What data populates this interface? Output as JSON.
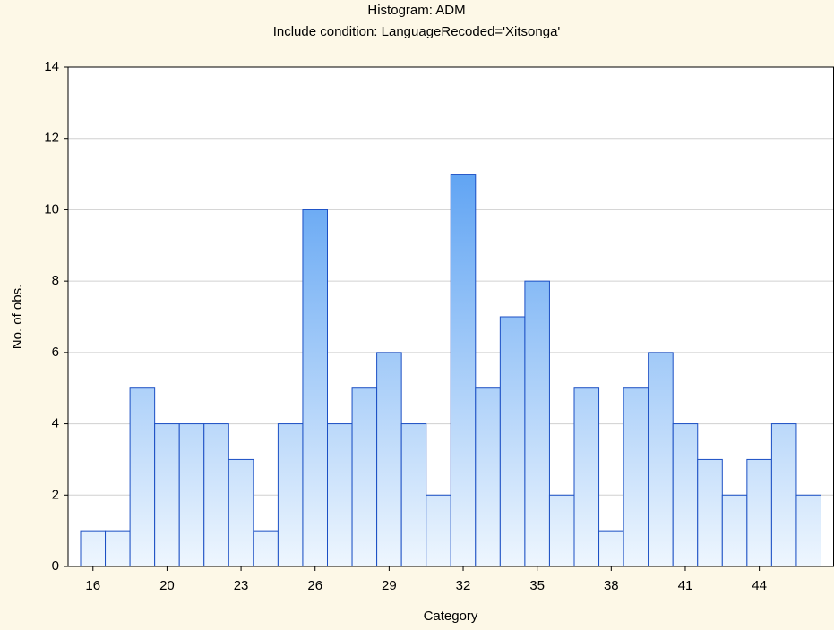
{
  "chart_data": {
    "type": "bar",
    "title": "Histogram: ADM",
    "subtitle": "Include condition: LanguageRecoded='Xitsonga'",
    "x_label": "Category",
    "y_label": "No. of obs.",
    "categories": [
      "16",
      null,
      null,
      "20",
      null,
      null,
      "23",
      null,
      null,
      "26",
      null,
      null,
      "29",
      null,
      null,
      "32",
      null,
      null,
      "35",
      null,
      null,
      "38",
      null,
      null,
      "41",
      null,
      null,
      "44",
      null,
      null
    ],
    "values": [
      1,
      1,
      5,
      4,
      4,
      4,
      3,
      1,
      4,
      10,
      4,
      5,
      6,
      4,
      2,
      11,
      5,
      7,
      8,
      2,
      5,
      1,
      5,
      6,
      4,
      3,
      2,
      3,
      4,
      2
    ],
    "color": "#3a8ef0",
    "ylim": [
      0,
      14
    ],
    "yticks": [
      0,
      2,
      4,
      6,
      8,
      10,
      12,
      14
    ],
    "grid": true
  }
}
